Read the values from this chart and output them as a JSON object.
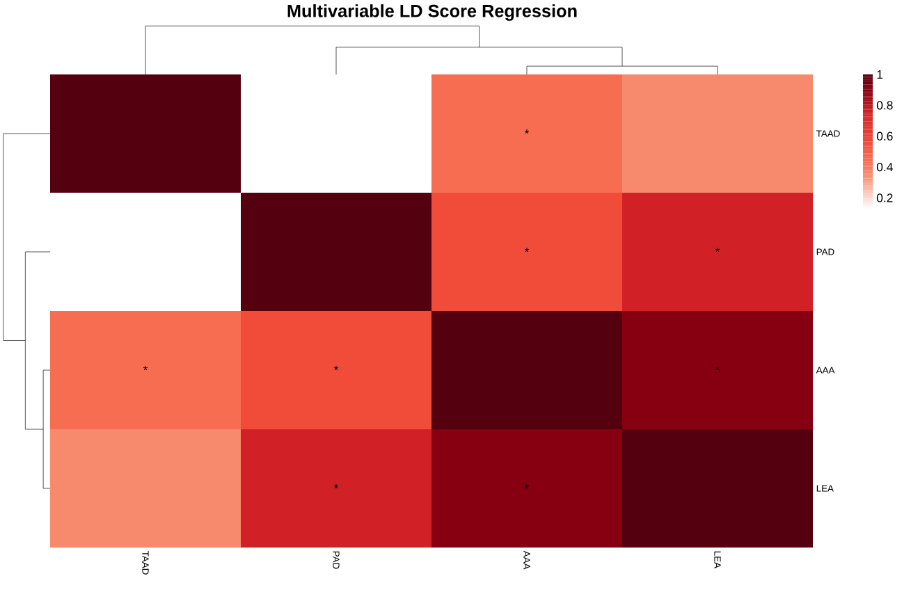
{
  "chart_data": {
    "type": "heatmap",
    "title": "Multivariable LD Score Regression",
    "categories": [
      "TAAD",
      "PAD",
      "AAA",
      "LEA"
    ],
    "y_categories": [
      "TAAD",
      "PAD",
      "AAA",
      "LEA"
    ],
    "cells": [
      [
        1,
        0.13,
        0.45,
        0.35
      ],
      [
        0.13,
        1,
        0.55,
        0.75
      ],
      [
        0.45,
        0.55,
        1,
        0.9
      ],
      [
        0.35,
        0.75,
        0.9,
        1
      ]
    ],
    "cell_labels": [
      [
        null,
        null,
        "*",
        null
      ],
      [
        null,
        null,
        "*",
        "*"
      ],
      [
        "*",
        "*",
        null,
        "*"
      ],
      [
        null,
        "*",
        "*",
        null
      ]
    ],
    "clim": [
      0.13,
      1
    ],
    "cticks": [
      0.2,
      0.4,
      0.6,
      0.8,
      1
    ]
  }
}
